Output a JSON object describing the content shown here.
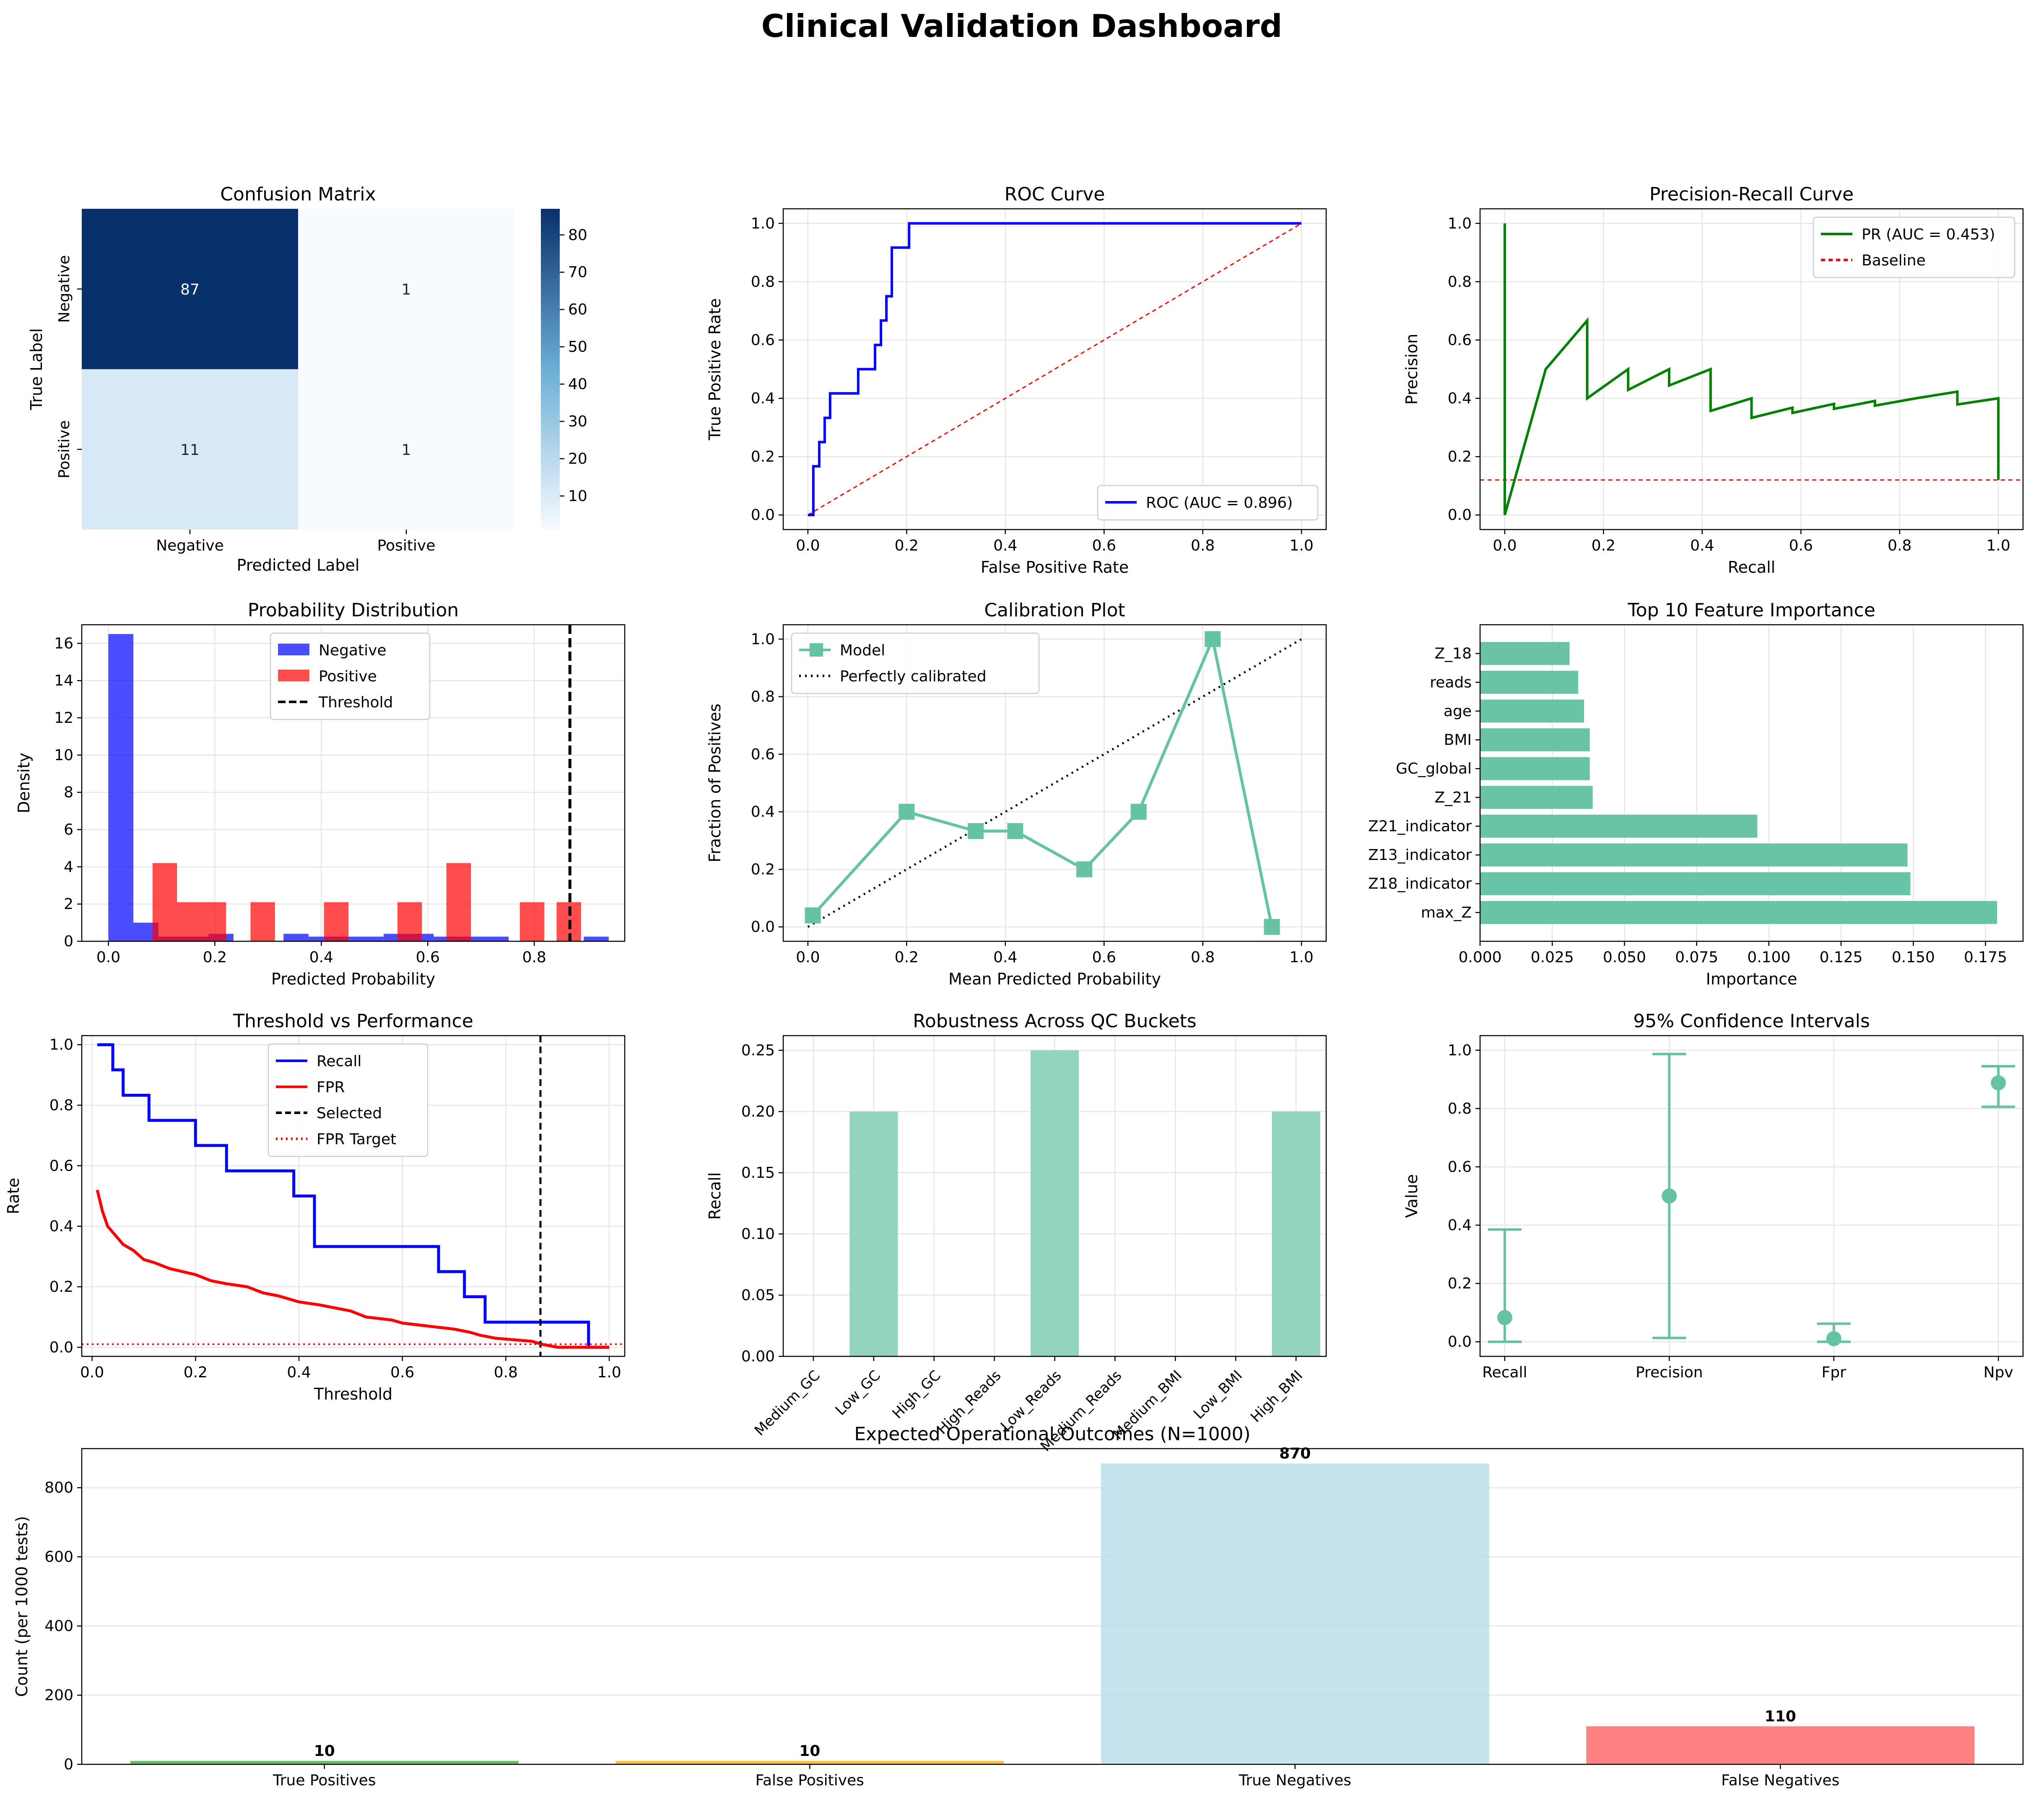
{
  "dashboard_title": "Clinical Validation Dashboard",
  "colors": {
    "teal": "#66c2a5",
    "teal_light": "#93d4bd",
    "blue": "#0000ff",
    "red": "#ff0000",
    "green": "#008000",
    "grid": "#e6e6e6",
    "tp": "#2ca02c",
    "fp": "#ffa500",
    "tn": "#add8e6",
    "fn": "#ff4d4d"
  },
  "chart_data": [
    {
      "type": "heatmap",
      "title": "Confusion Matrix",
      "xlabel": "Predicted Label",
      "ylabel": "True Label",
      "x_categories": [
        "Negative",
        "Positive"
      ],
      "y_categories": [
        "Negative",
        "Positive"
      ],
      "values": [
        [
          87,
          1
        ],
        [
          11,
          1
        ]
      ],
      "colormap": "Blues",
      "colorbar_ticks": [
        10,
        20,
        30,
        40,
        50,
        60,
        70,
        80
      ]
    },
    {
      "type": "line",
      "title": "ROC Curve",
      "xlabel": "False Positive Rate",
      "ylabel": "True Positive Rate",
      "xlim": [
        0,
        1
      ],
      "ylim": [
        0,
        1
      ],
      "xticks": [
        0.0,
        0.2,
        0.4,
        0.6,
        0.8,
        1.0
      ],
      "yticks": [
        0.0,
        0.2,
        0.4,
        0.6,
        0.8,
        1.0
      ],
      "grid": true,
      "legend": "lower-right",
      "series": [
        {
          "name": "ROC (AUC = 0.896)",
          "color": "#0000ff",
          "style": "solid",
          "x": [
            0,
            0.011,
            0.011,
            0.023,
            0.023,
            0.034,
            0.034,
            0.045,
            0.045,
            0.057,
            0.057,
            0.102,
            0.102,
            0.136,
            0.136,
            0.148,
            0.148,
            0.159,
            0.159,
            0.17,
            0.17,
            0.205,
            0.205,
            1.0
          ],
          "y": [
            0,
            0,
            0.167,
            0.167,
            0.25,
            0.25,
            0.333,
            0.333,
            0.417,
            0.417,
            0.417,
            0.417,
            0.5,
            0.5,
            0.583,
            0.583,
            0.667,
            0.667,
            0.75,
            0.75,
            0.917,
            0.917,
            1.0,
            1.0
          ]
        },
        {
          "name": "",
          "color": "#ff0000",
          "style": "dashed",
          "x": [
            0,
            1
          ],
          "y": [
            0,
            1
          ]
        }
      ]
    },
    {
      "type": "line",
      "title": "Precision-Recall Curve",
      "xlabel": "Recall",
      "ylabel": "Precision",
      "xlim": [
        0,
        1
      ],
      "ylim": [
        0,
        1
      ],
      "xticks": [
        0.0,
        0.2,
        0.4,
        0.6,
        0.8,
        1.0
      ],
      "yticks": [
        0.0,
        0.2,
        0.4,
        0.6,
        0.8,
        1.0
      ],
      "grid": true,
      "legend": "top-right",
      "series": [
        {
          "name": "PR (AUC = 0.453)",
          "color": "#008000",
          "style": "solid",
          "x": [
            0,
            0,
            0.083,
            0.167,
            0.167,
            0.25,
            0.25,
            0.333,
            0.333,
            0.417,
            0.417,
            0.5,
            0.5,
            0.583,
            0.583,
            0.667,
            0.667,
            0.75,
            0.75,
            0.833,
            0.917,
            0.917,
            1.0,
            1.0
          ],
          "y": [
            1.0,
            0.0,
            0.5,
            0.667,
            0.4,
            0.5,
            0.429,
            0.5,
            0.444,
            0.5,
            0.357,
            0.4,
            0.333,
            0.368,
            0.35,
            0.381,
            0.364,
            0.391,
            0.375,
            0.4,
            0.423,
            0.379,
            0.4,
            0.12
          ]
        },
        {
          "name": "Baseline",
          "color": "#ff0000",
          "style": "dashed",
          "x": [
            -0.1,
            1.1
          ],
          "y": [
            0.12,
            0.12
          ]
        }
      ]
    },
    {
      "type": "bar",
      "title": "Probability Distribution",
      "xlabel": "Predicted Probability",
      "ylabel": "Density",
      "xlim": [
        -0.05,
        0.97
      ],
      "ylim": [
        0,
        17
      ],
      "xticks": [
        0.0,
        0.2,
        0.4,
        0.6,
        0.8
      ],
      "yticks": [
        0,
        2,
        4,
        6,
        8,
        10,
        12,
        14,
        16
      ],
      "grid": true,
      "legend": "top-center",
      "threshold": 0.867,
      "threshold_label": "Threshold",
      "series": [
        {
          "name": "Negative",
          "color": "#0000ff",
          "alpha": 0.7,
          "bins": [
            [
              0.0,
              0.047,
              16.5
            ],
            [
              0.047,
              0.094,
              1.0
            ],
            [
              0.094,
              0.141,
              0.25
            ],
            [
              0.141,
              0.188,
              0.25
            ],
            [
              0.188,
              0.235,
              0.4
            ],
            [
              0.235,
              0.282,
              0.0
            ],
            [
              0.282,
              0.329,
              0.0
            ],
            [
              0.329,
              0.376,
              0.4
            ],
            [
              0.376,
              0.423,
              0.25
            ],
            [
              0.423,
              0.47,
              0.25
            ],
            [
              0.47,
              0.517,
              0.25
            ],
            [
              0.517,
              0.564,
              0.4
            ],
            [
              0.564,
              0.611,
              0.4
            ],
            [
              0.611,
              0.658,
              0.25
            ],
            [
              0.658,
              0.705,
              0.25
            ],
            [
              0.705,
              0.752,
              0.25
            ],
            [
              0.893,
              0.94,
              0.25
            ]
          ]
        },
        {
          "name": "Positive",
          "color": "#ff0000",
          "alpha": 0.7,
          "bins": [
            [
              0.083,
              0.129,
              4.2
            ],
            [
              0.129,
              0.175,
              2.1
            ],
            [
              0.175,
              0.221,
              2.1
            ],
            [
              0.267,
              0.313,
              2.1
            ],
            [
              0.405,
              0.451,
              2.1
            ],
            [
              0.543,
              0.589,
              2.1
            ],
            [
              0.635,
              0.681,
              4.2
            ],
            [
              0.773,
              0.819,
              2.1
            ],
            [
              0.842,
              0.888,
              2.1
            ]
          ]
        }
      ]
    },
    {
      "type": "line",
      "title": "Calibration Plot",
      "xlabel": "Mean Predicted Probability",
      "ylabel": "Fraction of Positives",
      "xlim": [
        0,
        1
      ],
      "ylim": [
        0,
        1
      ],
      "xticks": [
        0.0,
        0.2,
        0.4,
        0.6,
        0.8,
        1.0
      ],
      "yticks": [
        0.0,
        0.2,
        0.4,
        0.6,
        0.8,
        1.0
      ],
      "grid": true,
      "legend": "top-left",
      "series": [
        {
          "name": "Model",
          "color": "#66c2a5",
          "marker": "square",
          "x": [
            0.01,
            0.2,
            0.34,
            0.42,
            0.56,
            0.67,
            0.82,
            0.94
          ],
          "y": [
            0.04,
            0.4,
            0.333,
            0.333,
            0.2,
            0.4,
            1.0,
            0.0
          ]
        },
        {
          "name": "Perfectly calibrated",
          "color": "#000000",
          "style": "dotted",
          "x": [
            0,
            1
          ],
          "y": [
            0,
            1
          ]
        }
      ]
    },
    {
      "type": "bar",
      "orientation": "horizontal",
      "title": "Top 10 Feature Importance",
      "xlabel": "Importance",
      "ylabel": "",
      "xlim": [
        0,
        0.188
      ],
      "xticks": [
        0.0,
        0.025,
        0.05,
        0.075,
        0.1,
        0.125,
        0.15,
        0.175
      ],
      "grid": true,
      "categories": [
        "max_Z",
        "Z18_indicator",
        "Z13_indicator",
        "Z21_indicator",
        "Z_21",
        "GC_global",
        "BMI",
        "age",
        "reads",
        "Z_18"
      ],
      "values": [
        0.179,
        0.149,
        0.148,
        0.096,
        0.039,
        0.038,
        0.038,
        0.036,
        0.034,
        0.031
      ]
    },
    {
      "type": "line",
      "title": "Threshold vs Performance",
      "xlabel": "Threshold",
      "ylabel": "Rate",
      "xlim": [
        -0.02,
        1.03
      ],
      "ylim": [
        -0.03,
        1.03
      ],
      "xticks": [
        0.0,
        0.2,
        0.4,
        0.6,
        0.8,
        1.0
      ],
      "yticks": [
        0.0,
        0.2,
        0.4,
        0.6,
        0.8,
        1.0
      ],
      "grid": true,
      "legend": "top-center",
      "selected_threshold": 0.867,
      "fpr_target": 0.01,
      "series": [
        {
          "name": "Recall",
          "color": "#0000ff",
          "x": [
            0.01,
            0.04,
            0.04,
            0.06,
            0.06,
            0.08,
            0.08,
            0.11,
            0.11,
            0.2,
            0.2,
            0.26,
            0.26,
            0.39,
            0.39,
            0.43,
            0.43,
            0.67,
            0.67,
            0.72,
            0.72,
            0.76,
            0.76,
            0.96,
            0.96,
            1.0
          ],
          "y": [
            1.0,
            1.0,
            0.917,
            0.917,
            0.833,
            0.833,
            0.833,
            0.833,
            0.75,
            0.75,
            0.667,
            0.667,
            0.583,
            0.583,
            0.5,
            0.5,
            0.333,
            0.333,
            0.25,
            0.25,
            0.167,
            0.167,
            0.083,
            0.083,
            0.0,
            0.0
          ]
        },
        {
          "name": "FPR",
          "color": "#ff0000",
          "x": [
            0.01,
            0.02,
            0.03,
            0.04,
            0.05,
            0.06,
            0.08,
            0.1,
            0.12,
            0.15,
            0.2,
            0.23,
            0.26,
            0.3,
            0.33,
            0.36,
            0.4,
            0.44,
            0.5,
            0.53,
            0.58,
            0.6,
            0.65,
            0.7,
            0.73,
            0.75,
            0.78,
            0.85,
            0.87,
            0.9,
            0.95,
            1.0
          ],
          "y": [
            0.52,
            0.45,
            0.4,
            0.38,
            0.36,
            0.34,
            0.32,
            0.29,
            0.28,
            0.26,
            0.24,
            0.22,
            0.21,
            0.2,
            0.18,
            0.17,
            0.15,
            0.14,
            0.12,
            0.1,
            0.09,
            0.08,
            0.07,
            0.06,
            0.05,
            0.04,
            0.03,
            0.02,
            0.01,
            0.0,
            0.0,
            0.0
          ]
        },
        {
          "name": "Selected",
          "color": "#000000",
          "style": "dashed"
        },
        {
          "name": "FPR Target",
          "color": "#ff0000",
          "style": "dotted"
        }
      ]
    },
    {
      "type": "bar",
      "title": "Robustness Across QC Buckets",
      "xlabel": "",
      "ylabel": "Recall",
      "ylim": [
        0,
        0.262
      ],
      "yticks": [
        0.0,
        0.05,
        0.1,
        0.15,
        0.2,
        0.25
      ],
      "grid": true,
      "categories": [
        "Medium_GC",
        "Low_GC",
        "High_GC",
        "High_Reads",
        "Low_Reads",
        "Medium_Reads",
        "Medium_BMI",
        "Low_BMI",
        "High_BMI"
      ],
      "values": [
        0.0,
        0.2,
        0.0,
        0.0,
        0.25,
        0.0,
        0.0,
        0.0,
        0.2
      ]
    },
    {
      "type": "scatter",
      "title": "95% Confidence Intervals",
      "xlabel": "",
      "ylabel": "Value",
      "ylim": [
        -0.05,
        1.05
      ],
      "yticks": [
        0.0,
        0.2,
        0.4,
        0.6,
        0.8,
        1.0
      ],
      "grid": true,
      "categories": [
        "Recall",
        "Precision",
        "Fpr",
        "Npv"
      ],
      "values": [
        0.083,
        0.5,
        0.011,
        0.888
      ],
      "lower": [
        0.0,
        0.013,
        0.0,
        0.806
      ],
      "upper": [
        0.385,
        0.987,
        0.062,
        0.945
      ]
    },
    {
      "type": "bar",
      "title": "Expected Operational Outcomes (N=1000)",
      "xlabel": "",
      "ylabel": "Count (per 1000 tests)",
      "ylim": [
        0,
        913
      ],
      "yticks": [
        0,
        200,
        400,
        600,
        800
      ],
      "grid": true,
      "categories": [
        "True Positives",
        "False Positives",
        "True Negatives",
        "False Negatives"
      ],
      "values": [
        10,
        10,
        870,
        110
      ],
      "value_labels": [
        "10",
        "10",
        "870",
        "110"
      ]
    }
  ]
}
